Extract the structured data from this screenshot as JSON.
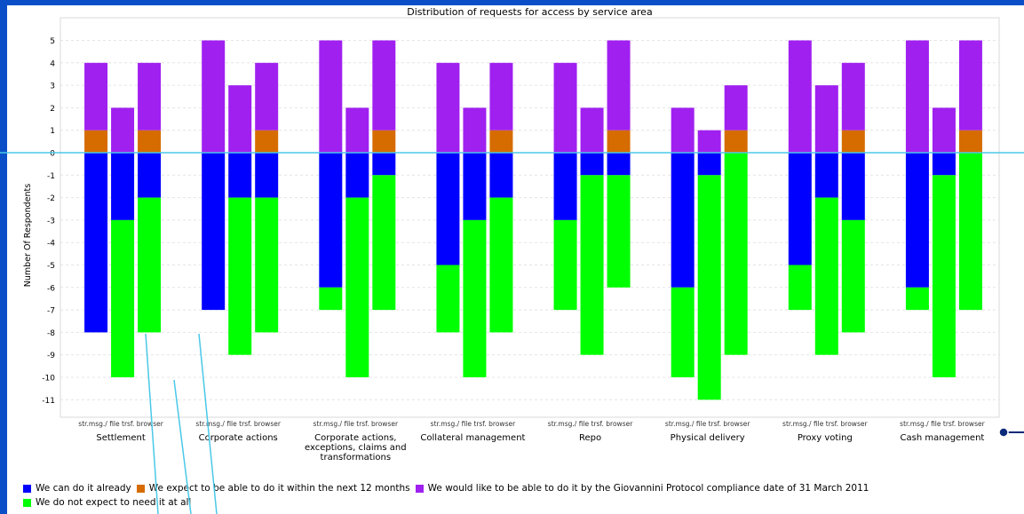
{
  "chart_data": {
    "type": "bar",
    "title": "Distribution of requests for access by service area",
    "ylabel": "Number Of Respondents",
    "xlabel": "",
    "ylim": [
      -11,
      5
    ],
    "yticks": [
      "5",
      "4",
      "3",
      "2",
      "1",
      "0",
      "-1",
      "-2",
      "-3",
      "-4",
      "-5",
      "-6",
      "-7",
      "-8",
      "-9",
      "-10",
      "-11"
    ],
    "grid": true,
    "legend_position": "bottom",
    "groups": [
      "Settlement",
      "Corporate actions",
      "Corporate actions, exceptions, claims and transformations",
      "Collateral management",
      "Repo",
      "Physical delivery",
      "Proxy voting",
      "Cash management"
    ],
    "group_label_lines": [
      [
        "Settlement"
      ],
      [
        "Corporate actions"
      ],
      [
        "Corporate actions,",
        "exceptions, claims and",
        "transformations"
      ],
      [
        "Collateral management"
      ],
      [
        "Repo"
      ],
      [
        "Physical delivery"
      ],
      [
        "Proxy voting"
      ],
      [
        "Cash management"
      ]
    ],
    "subcategories": [
      "str.msg./ file",
      "trsf.",
      "browser"
    ],
    "series": [
      {
        "name": "We can do it already",
        "color": "#0000ff",
        "direction": "negative",
        "values": [
          [
            8,
            3,
            2
          ],
          [
            7,
            2,
            2
          ],
          [
            6,
            2,
            1
          ],
          [
            5,
            3,
            2
          ],
          [
            3,
            1,
            1
          ],
          [
            6,
            1,
            0
          ],
          [
            5,
            2,
            3
          ],
          [
            6,
            1,
            0
          ]
        ]
      },
      {
        "name": "We expect to be able to do it within the next 12 months",
        "color": "#d66c00",
        "direction": "positive",
        "values": [
          [
            1,
            0,
            1
          ],
          [
            0,
            0,
            1
          ],
          [
            0,
            0,
            1
          ],
          [
            0,
            0,
            1
          ],
          [
            0,
            0,
            1
          ],
          [
            0,
            0,
            1
          ],
          [
            0,
            0,
            1
          ],
          [
            0,
            0,
            1
          ]
        ]
      },
      {
        "name": "We would like to be able to do it by the Giovannini Protocol compliance date of 31 March 2011",
        "color": "#a020f0",
        "direction": "positive",
        "values": [
          [
            3,
            2,
            3
          ],
          [
            5,
            3,
            3
          ],
          [
            5,
            2,
            4
          ],
          [
            4,
            2,
            3
          ],
          [
            4,
            2,
            4
          ],
          [
            2,
            1,
            2
          ],
          [
            5,
            3,
            3
          ],
          [
            5,
            2,
            4
          ]
        ]
      },
      {
        "name": "We do not expect to need it at all",
        "color": "#00ff00",
        "direction": "negative",
        "values": [
          [
            0,
            7,
            6
          ],
          [
            0,
            7,
            6
          ],
          [
            1,
            8,
            6
          ],
          [
            3,
            7,
            6
          ],
          [
            4,
            8,
            5
          ],
          [
            4,
            10,
            9
          ],
          [
            2,
            7,
            5
          ],
          [
            1,
            9,
            7
          ]
        ]
      }
    ]
  },
  "legend": {
    "item1": "We can do it already",
    "item2": "We expect to be able to do it within the next 12 months",
    "item3": "We would like to be able to do it by the Giovannini Protocol compliance date of 31 March 2011",
    "item4": "We do not expect to need it at all"
  },
  "colors": {
    "background": "#0a4fc8",
    "annotation_line": "#4ac8e8"
  }
}
